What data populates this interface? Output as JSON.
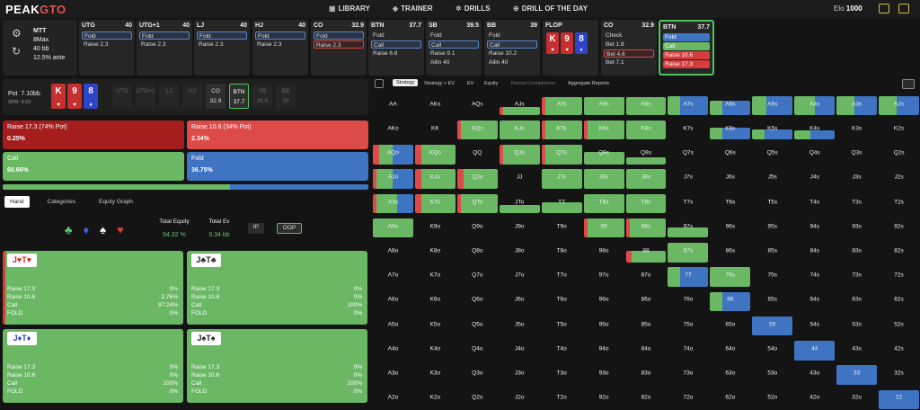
{
  "brand": {
    "peak": "PEAK",
    "gto": "GTO"
  },
  "nav": [
    {
      "icon": "library-icon",
      "label": "LIBRARY"
    },
    {
      "icon": "trainer-icon",
      "label": "TRAINER"
    },
    {
      "icon": "drills-icon",
      "label": "DRILLS"
    },
    {
      "icon": "drill-of-day-icon",
      "label": "DRILL OF THE DAY"
    }
  ],
  "elo": {
    "label": "Elo",
    "value": "1000"
  },
  "settings": {
    "mode": "MTT",
    "table": "8Max",
    "stack": "40 bb",
    "ante": "12.5% ante"
  },
  "seats": [
    {
      "pos": "UTG",
      "stack": "40",
      "actions": [
        "Fold",
        "Raise 2.3"
      ]
    },
    {
      "pos": "UTG+1",
      "stack": "40",
      "actions": [
        "Fold",
        "Raise 2.3"
      ]
    },
    {
      "pos": "LJ",
      "stack": "40",
      "actions": [
        "Fold",
        "Raise 2.3"
      ]
    },
    {
      "pos": "HJ",
      "stack": "40",
      "actions": [
        "Fold",
        "Raise 2.3"
      ]
    },
    {
      "pos": "CO",
      "stack": "32.9",
      "actions": [
        "Fold",
        "Raise 2.3"
      ]
    },
    {
      "pos": "BTN",
      "stack": "37.7",
      "actions": [
        "Fold",
        "Call",
        "Raise 6.8"
      ]
    },
    {
      "pos": "SB",
      "stack": "39.5",
      "actions": [
        "Fold",
        "Call",
        "Raise 9.1",
        "Allin 40"
      ]
    },
    {
      "pos": "BB",
      "stack": "39",
      "actions": [
        "Fold",
        "Call",
        "Raise 10.2",
        "Allin 40"
      ]
    },
    {
      "pos": "FLOP",
      "stack": "",
      "actions": []
    },
    {
      "pos": "CO",
      "stack": "32.9",
      "actions": [
        "Check",
        "Bet 1.8",
        "Bet 4.6",
        "Bet 7.1"
      ]
    },
    {
      "pos": "BTN",
      "stack": "37.7",
      "actions": [
        "Fold",
        "Call",
        "Raise 10.6",
        "Raise 17.3"
      ]
    }
  ],
  "board": [
    {
      "rank": "K",
      "suit": "♥",
      "color": "h"
    },
    {
      "rank": "9",
      "suit": "♥",
      "color": "h"
    },
    {
      "rank": "8",
      "suit": "♦",
      "color": "d"
    }
  ],
  "pot": {
    "label": "Pot",
    "value": "7.10bb",
    "spr": "SPR: 4.63"
  },
  "positions": [
    {
      "name": "UTG",
      "stack": ""
    },
    {
      "name": "UTG+1",
      "stack": ""
    },
    {
      "name": "LJ",
      "stack": ""
    },
    {
      "name": "HJ",
      "stack": ""
    },
    {
      "name": "CO",
      "stack": "32.9"
    },
    {
      "name": "BTN",
      "stack": "37.7"
    },
    {
      "name": "SB",
      "stack": "39.5"
    },
    {
      "name": "BB",
      "stack": "39"
    }
  ],
  "actions": [
    {
      "label": "Raise 17.3 (74% Pot)",
      "pct": "0.25%",
      "color": "#a51d1d"
    },
    {
      "label": "Raise 10.6 (34% Pot)",
      "pct": "2.34%",
      "color": "#dd4b48"
    },
    {
      "label": "Call",
      "pct": "60.66%",
      "color": "#6ab864"
    },
    {
      "label": "Fold",
      "pct": "36.75%",
      "color": "#3f74c2"
    }
  ],
  "progress": {
    "call": 0.61,
    "fold": 0.37
  },
  "left_tabs": [
    "Hand",
    "Categories",
    "Equity Graph"
  ],
  "suits": [
    "♣",
    "♦",
    "♠",
    "♥"
  ],
  "equity": {
    "label": "Total Equity",
    "value": "54.32 %"
  },
  "ev": {
    "label": "Total Ev",
    "value": "9.34 bb"
  },
  "ip": "IP",
  "oop": "OOP",
  "combos": [
    {
      "label": "J♥T♥",
      "rows": [
        [
          "Raise 17.3",
          "0%"
        ],
        [
          "Raise 10.6",
          "2.76%"
        ],
        [
          "Call",
          "97.24%"
        ],
        [
          "FOLD",
          "0%"
        ]
      ]
    },
    {
      "label": "J♣T♣",
      "rows": [
        [
          "Raise 17.3",
          "0%"
        ],
        [
          "Raise 10.6",
          "0%"
        ],
        [
          "Call",
          "100%"
        ],
        [
          "FOLD",
          "0%"
        ]
      ]
    },
    {
      "label": "J♦T♦",
      "rows": [
        [
          "Raise 17.3",
          "0%"
        ],
        [
          "Raise 10.6",
          "0%"
        ],
        [
          "Call",
          "100%"
        ],
        [
          "FOLD",
          "0%"
        ]
      ]
    },
    {
      "label": "J♠T♠",
      "rows": [
        [
          "Raise 17.3",
          "0%"
        ],
        [
          "Raise 10.6",
          "0%"
        ],
        [
          "Call",
          "100%"
        ],
        [
          "FOLD",
          "0%"
        ]
      ]
    }
  ],
  "right_tabs": [
    "Strategy",
    "Strategy + EV",
    "EV",
    "Equity",
    "Runout Comparison",
    "Aggregate Reports"
  ],
  "grid_rows": [
    [
      "AA",
      "AKs",
      "AQs",
      "AJs",
      "ATs",
      "A9s",
      "A8s",
      "A7s",
      "A6s",
      "A5s",
      "A4s",
      "A3s",
      "A2s"
    ],
    [
      "AKo",
      "KK",
      "KQs",
      "KJs",
      "KTs",
      "K9s",
      "K8s",
      "K7s",
      "K6s",
      "K5s",
      "K4s",
      "K3s",
      "K2s"
    ],
    [
      "AQo",
      "KQo",
      "QQ",
      "QJs",
      "QTs",
      "Q9s",
      "Q8s",
      "Q7s",
      "Q6s",
      "Q5s",
      "Q4s",
      "Q3s",
      "Q2s"
    ],
    [
      "AJo",
      "KJo",
      "QJo",
      "JJ",
      "JTs",
      "J9s",
      "J8s",
      "J7s",
      "J6s",
      "J5s",
      "J4s",
      "J3s",
      "J2s"
    ],
    [
      "ATo",
      "KTo",
      "QTo",
      "JTo",
      "TT",
      "T9s",
      "T8s",
      "T7s",
      "T6s",
      "T5s",
      "T4s",
      "T3s",
      "T2s"
    ],
    [
      "A9o",
      "K9o",
      "Q9o",
      "J9o",
      "T9o",
      "99",
      "98s",
      "97s",
      "96s",
      "95s",
      "94s",
      "93s",
      "92s"
    ],
    [
      "A8o",
      "K8o",
      "Q8o",
      "J8o",
      "T8o",
      "98o",
      "88",
      "87s",
      "86s",
      "85s",
      "84s",
      "83s",
      "82s"
    ],
    [
      "A7o",
      "K7o",
      "Q7o",
      "J7o",
      "T7o",
      "97o",
      "87o",
      "77",
      "76s",
      "75s",
      "74s",
      "73s",
      "72s"
    ],
    [
      "A6o",
      "K6o",
      "Q6o",
      "J6o",
      "T6o",
      "96o",
      "86o",
      "76o",
      "66",
      "65s",
      "64s",
      "63s",
      "62s"
    ],
    [
      "A5o",
      "K5o",
      "Q5o",
      "J5o",
      "T5o",
      "95o",
      "85o",
      "75o",
      "65o",
      "55",
      "54s",
      "53s",
      "52s"
    ],
    [
      "A4o",
      "K4o",
      "Q4o",
      "J4o",
      "T4o",
      "94o",
      "84o",
      "74o",
      "64o",
      "54o",
      "44",
      "43s",
      "42s"
    ],
    [
      "A3o",
      "K3o",
      "Q3o",
      "J3o",
      "T3o",
      "93o",
      "83o",
      "73o",
      "63o",
      "53o",
      "43o",
      "33",
      "32s"
    ],
    [
      "A2o",
      "K2o",
      "Q2o",
      "J2o",
      "T2o",
      "92o",
      "82o",
      "72o",
      "62o",
      "52o",
      "42o",
      "32o",
      "22"
    ]
  ],
  "grid_strategy": {
    "AJs": {
      "h": 0.35,
      "m": [
        [
          0.1,
          "#dd4b48"
        ],
        [
          0.9,
          "#6ab864"
        ]
      ]
    },
    "ATs": {
      "h": 0.8,
      "m": [
        [
          0.1,
          "#dd4b48"
        ],
        [
          0.9,
          "#6ab864"
        ]
      ]
    },
    "A9s": {
      "h": 0.8,
      "m": [
        [
          1,
          "#6ab864"
        ]
      ]
    },
    "A8s": {
      "h": 0.8,
      "m": [
        [
          1,
          "#6ab864"
        ]
      ]
    },
    "A7s": {
      "h": 0.85,
      "m": [
        [
          0.3,
          "#6ab864"
        ],
        [
          0.7,
          "#3f74c2"
        ]
      ]
    },
    "A6s": {
      "h": 0.65,
      "m": [
        [
          0.3,
          "#6ab864"
        ],
        [
          0.7,
          "#3f74c2"
        ]
      ]
    },
    "A5s": {
      "h": 0.85,
      "m": [
        [
          0.35,
          "#6ab864"
        ],
        [
          0.65,
          "#3f74c2"
        ]
      ]
    },
    "A4s": {
      "h": 0.85,
      "m": [
        [
          0.5,
          "#6ab864"
        ],
        [
          0.5,
          "#3f74c2"
        ]
      ]
    },
    "A3s": {
      "h": 0.85,
      "m": [
        [
          0.45,
          "#6ab864"
        ],
        [
          0.55,
          "#3f74c2"
        ]
      ]
    },
    "A2s": {
      "h": 0.85,
      "m": [
        [
          0.45,
          "#6ab864"
        ],
        [
          0.55,
          "#3f74c2"
        ]
      ]
    },
    "KQs": {
      "h": 0.85,
      "m": [
        [
          0.1,
          "#dd4b48"
        ],
        [
          0.9,
          "#6ab864"
        ]
      ]
    },
    "KJs": {
      "h": 0.85,
      "m": [
        [
          1,
          "#6ab864"
        ]
      ]
    },
    "KTs": {
      "h": 0.85,
      "m": [
        [
          0.1,
          "#dd4b48"
        ],
        [
          0.9,
          "#6ab864"
        ]
      ]
    },
    "K9s": {
      "h": 0.85,
      "m": [
        [
          0.1,
          "#dd4b48"
        ],
        [
          0.9,
          "#6ab864"
        ]
      ]
    },
    "K8s": {
      "h": 0.85,
      "m": [
        [
          1,
          "#6ab864"
        ]
      ]
    },
    "K6s": {
      "h": 0.55,
      "m": [
        [
          0.3,
          "#6ab864"
        ],
        [
          0.7,
          "#3f74c2"
        ]
      ]
    },
    "K5s": {
      "h": 0.45,
      "m": [
        [
          0.3,
          "#6ab864"
        ],
        [
          0.7,
          "#3f74c2"
        ]
      ]
    },
    "K4s": {
      "h": 0.4,
      "m": [
        [
          0.4,
          "#6ab864"
        ],
        [
          0.6,
          "#3f74c2"
        ]
      ]
    },
    "AQo": {
      "h": 0.85,
      "m": [
        [
          0.15,
          "#dd4b48"
        ],
        [
          0.35,
          "#6ab864"
        ],
        [
          0.5,
          "#3f74c2"
        ]
      ]
    },
    "KQo": {
      "h": 0.85,
      "m": [
        [
          0.15,
          "#dd4b48"
        ],
        [
          0.85,
          "#6ab864"
        ]
      ]
    },
    "QJs": {
      "h": 0.85,
      "m": [
        [
          0.1,
          "#dd4b48"
        ],
        [
          0.9,
          "#6ab864"
        ]
      ]
    },
    "QTs": {
      "h": 0.85,
      "m": [
        [
          0.1,
          "#dd4b48"
        ],
        [
          0.9,
          "#6ab864"
        ]
      ]
    },
    "Q9s": {
      "h": 0.55,
      "m": [
        [
          1,
          "#6ab864"
        ]
      ]
    },
    "Q8s": {
      "h": 0.3,
      "m": [
        [
          1,
          "#6ab864"
        ]
      ]
    },
    "AJo": {
      "h": 0.85,
      "m": [
        [
          0.1,
          "#dd4b48"
        ],
        [
          0.4,
          "#6ab864"
        ],
        [
          0.5,
          "#3f74c2"
        ]
      ]
    },
    "KJo": {
      "h": 0.85,
      "m": [
        [
          0.15,
          "#dd4b48"
        ],
        [
          0.85,
          "#6ab864"
        ]
      ]
    },
    "QJo": {
      "h": 0.85,
      "m": [
        [
          0.15,
          "#dd4b48"
        ],
        [
          0.85,
          "#6ab864"
        ]
      ]
    },
    "JTs": {
      "h": 0.85,
      "m": [
        [
          1,
          "#6ab864"
        ]
      ]
    },
    "J9s": {
      "h": 0.85,
      "m": [
        [
          1,
          "#6ab864"
        ]
      ]
    },
    "J8s": {
      "h": 0.85,
      "m": [
        [
          1,
          "#6ab864"
        ]
      ]
    },
    "ATo": {
      "h": 0.85,
      "m": [
        [
          0.1,
          "#dd4b48"
        ],
        [
          0.5,
          "#6ab864"
        ],
        [
          0.4,
          "#3f74c2"
        ]
      ]
    },
    "KTo": {
      "h": 0.85,
      "m": [
        [
          0.15,
          "#dd4b48"
        ],
        [
          0.85,
          "#6ab864"
        ]
      ]
    },
    "QTo": {
      "h": 0.85,
      "m": [
        [
          0.1,
          "#dd4b48"
        ],
        [
          0.9,
          "#6ab864"
        ]
      ]
    },
    "JTo": {
      "h": 0.35,
      "m": [
        [
          1,
          "#6ab864"
        ]
      ]
    },
    "TT": {
      "h": 0.5,
      "m": [
        [
          1,
          "#6ab864"
        ]
      ]
    },
    "T9s": {
      "h": 0.85,
      "m": [
        [
          1,
          "#6ab864"
        ]
      ]
    },
    "T8s": {
      "h": 0.85,
      "m": [
        [
          1,
          "#6ab864"
        ]
      ]
    },
    "A9o": {
      "h": 0.85,
      "m": [
        [
          1,
          "#6ab864"
        ]
      ]
    },
    "99": {
      "h": 0.85,
      "m": [
        [
          0.1,
          "#dd4b48"
        ],
        [
          0.9,
          "#6ab864"
        ]
      ]
    },
    "98s": {
      "h": 0.85,
      "m": [
        [
          0.1,
          "#dd4b48"
        ],
        [
          0.9,
          "#6ab864"
        ]
      ]
    },
    "97s": {
      "h": 0.45,
      "m": [
        [
          1,
          "#6ab864"
        ]
      ]
    },
    "88": {
      "h": 0.5,
      "m": [
        [
          0.15,
          "#dd4b48"
        ],
        [
          0.85,
          "#6ab864"
        ]
      ]
    },
    "87s": {
      "h": 0.85,
      "m": [
        [
          1,
          "#6ab864"
        ]
      ]
    },
    "77": {
      "h": 0.85,
      "m": [
        [
          0.3,
          "#6ab864"
        ],
        [
          0.7,
          "#3f74c2"
        ]
      ]
    },
    "76s": {
      "h": 0.85,
      "m": [
        [
          1,
          "#6ab864"
        ]
      ]
    },
    "66": {
      "h": 0.85,
      "m": [
        [
          0.3,
          "#6ab864"
        ],
        [
          0.7,
          "#3f74c2"
        ]
      ]
    },
    "55": {
      "h": 0.85,
      "m": [
        [
          1,
          "#3f74c2"
        ]
      ]
    },
    "44": {
      "h": 0.85,
      "m": [
        [
          1,
          "#3f74c2"
        ]
      ]
    },
    "33": {
      "h": 0.85,
      "m": [
        [
          1,
          "#3f74c2"
        ]
      ]
    },
    "22": {
      "h": 0.85,
      "m": [
        [
          1,
          "#3f74c2"
        ]
      ]
    }
  }
}
